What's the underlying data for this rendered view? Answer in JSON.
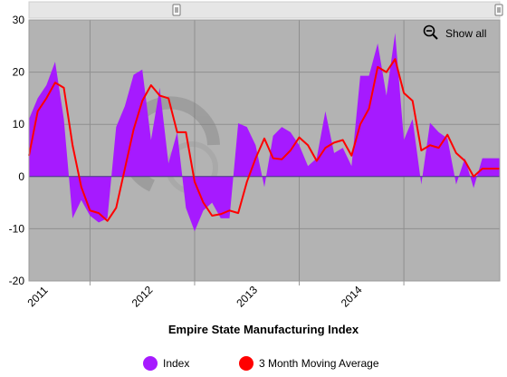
{
  "chart_data": {
    "type": "area",
    "title": "",
    "xlabel": "Empire State Manufacturing Index",
    "ylabel": "",
    "ylim": [
      -20,
      30
    ],
    "yticks": [
      -20,
      -10,
      0,
      10,
      20,
      30
    ],
    "x_tick_labels": [
      "2011",
      "2012",
      "2013",
      "2014"
    ],
    "x_start": "2010-06",
    "x_end": "2014-12",
    "grid": true,
    "legend": "bottom",
    "series": [
      {
        "name": "Index",
        "kind": "area",
        "color": "#a61aff",
        "x": [
          "2010-06",
          "2010-07",
          "2010-08",
          "2010-09",
          "2010-10",
          "2010-11",
          "2010-12",
          "2011-01",
          "2011-02",
          "2011-03",
          "2011-04",
          "2011-05",
          "2011-06",
          "2011-07",
          "2011-08",
          "2011-09",
          "2011-10",
          "2011-11",
          "2011-12",
          "2012-01",
          "2012-02",
          "2012-03",
          "2012-04",
          "2012-05",
          "2012-06",
          "2012-07",
          "2012-08",
          "2012-09",
          "2012-10",
          "2012-11",
          "2012-12",
          "2013-01",
          "2013-02",
          "2013-03",
          "2013-04",
          "2013-05",
          "2013-06",
          "2013-07",
          "2013-08",
          "2013-09",
          "2013-10",
          "2013-11",
          "2013-12",
          "2014-01",
          "2014-02",
          "2014-03",
          "2014-04",
          "2014-05",
          "2014-06",
          "2014-07",
          "2014-08",
          "2014-09",
          "2014-10",
          "2014-11",
          "2014-12"
        ],
        "values": [
          11,
          15,
          17.5,
          22,
          11,
          -8,
          -4.5,
          -7.5,
          -8.8,
          -8,
          9.5,
          13.5,
          19.5,
          20.5,
          7,
          17,
          2.5,
          8.5,
          -6,
          -10.5,
          -6.5,
          -5,
          -8,
          -8,
          10.2,
          9.5,
          6,
          -2,
          7.8,
          9.5,
          8.5,
          6,
          2,
          3.5,
          12.5,
          4.5,
          5.5,
          2,
          19.3,
          19.3,
          25.5,
          15.5,
          27.5,
          7,
          11,
          -1.5,
          10.3,
          8.5,
          7.3,
          -1.5,
          3.5,
          -2.2,
          3.5,
          3.5,
          3.5
        ]
      },
      {
        "name": "3 Month Moving Average",
        "kind": "line",
        "color": "#ff0000",
        "x": [
          "2010-06",
          "2010-07",
          "2010-08",
          "2010-09",
          "2010-10",
          "2010-11",
          "2010-12",
          "2011-01",
          "2011-02",
          "2011-03",
          "2011-04",
          "2011-05",
          "2011-06",
          "2011-07",
          "2011-08",
          "2011-09",
          "2011-10",
          "2011-11",
          "2011-12",
          "2012-01",
          "2012-02",
          "2012-03",
          "2012-04",
          "2012-05",
          "2012-06",
          "2012-07",
          "2012-08",
          "2012-09",
          "2012-10",
          "2012-11",
          "2012-12",
          "2013-01",
          "2013-02",
          "2013-03",
          "2013-04",
          "2013-05",
          "2013-06",
          "2013-07",
          "2013-08",
          "2013-09",
          "2013-10",
          "2013-11",
          "2013-12",
          "2014-01",
          "2014-02",
          "2014-03",
          "2014-04",
          "2014-05",
          "2014-06",
          "2014-07",
          "2014-08",
          "2014-09",
          "2014-10",
          "2014-11",
          "2014-12"
        ],
        "values": [
          4,
          12.5,
          15,
          18,
          17,
          6,
          -2,
          -6.5,
          -7,
          -8.5,
          -6,
          1.5,
          9,
          14.5,
          17.5,
          15.5,
          15,
          8.5,
          8.5,
          -1,
          -5,
          -7.5,
          -7.2,
          -6.5,
          -7,
          -1,
          3.5,
          7.3,
          3.5,
          3.3,
          5,
          7.5,
          6,
          3,
          5.5,
          6.5,
          7,
          4,
          10,
          13,
          21,
          20,
          22.5,
          16,
          14.5,
          5,
          6,
          5.5,
          8,
          4.5,
          3,
          0,
          1.5,
          1.5,
          1.5
        ]
      }
    ]
  },
  "controls": {
    "show_all_label": "Show all",
    "zoom_icon": "zoom-out-icon",
    "scrollbar_handle_icon": "scroll-handle-icon"
  },
  "colors": {
    "plot_background": "#b3b3b3",
    "grid": "#8f8f8f",
    "zero_line": "#4a3a8a",
    "index_area": "#a61aff",
    "moving_average": "#ff0000"
  }
}
